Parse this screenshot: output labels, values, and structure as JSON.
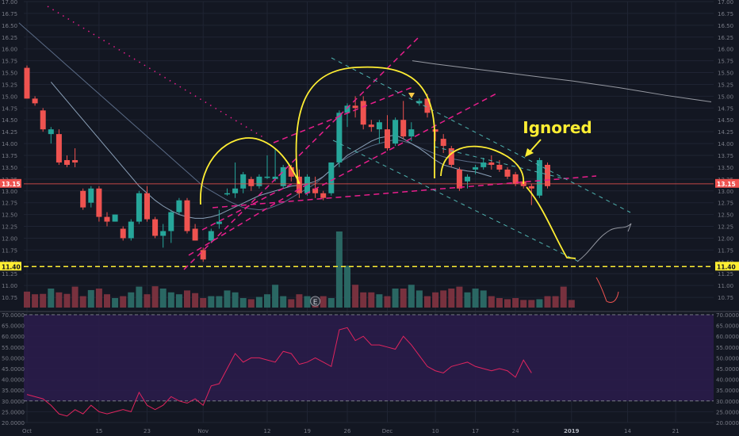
{
  "chart_data": {
    "type": "candlestick",
    "annotation_text": "Ignored",
    "price_axis": {
      "labels": [
        "17.00",
        "16.75",
        "16.50",
        "16.25",
        "16.00",
        "15.75",
        "15.50",
        "15.25",
        "15.00",
        "14.75",
        "14.50",
        "14.25",
        "14.00",
        "13.75",
        "13.50",
        "13.25",
        "13.00",
        "12.75",
        "12.50",
        "12.25",
        "12.00",
        "11.75",
        "11.50",
        "11.25",
        "11.00",
        "10.75"
      ],
      "values": [
        17.0,
        16.75,
        16.5,
        16.25,
        16.0,
        15.75,
        15.5,
        15.25,
        15.0,
        14.75,
        14.5,
        14.25,
        14.0,
        13.75,
        13.5,
        13.25,
        13.0,
        12.75,
        12.5,
        12.25,
        12.0,
        11.75,
        11.5,
        11.25,
        11.0,
        10.75
      ],
      "range": [
        10.5,
        17.0
      ],
      "current_price": 13.15,
      "current_price_label": "13.15",
      "horizontal_line": 11.4,
      "horizontal_line_label": "11.40"
    },
    "rsi_axis": {
      "labels": [
        "70.0000",
        "65.0000",
        "60.0000",
        "55.0000",
        "50.0000",
        "45.0000",
        "40.0000",
        "35.0000",
        "30.0000",
        "25.0000",
        "20.0000"
      ],
      "values": [
        70,
        65,
        60,
        55,
        50,
        45,
        40,
        35,
        30,
        25,
        20
      ],
      "range": [
        20,
        70
      ],
      "upper_band": 70,
      "lower_band": 30
    },
    "x_axis": {
      "labels": [
        "Oct",
        "15",
        "23",
        "Nov",
        "12",
        "19",
        "26",
        "Dec",
        "10",
        "17",
        "24",
        "2019",
        "14",
        "21"
      ],
      "positions": [
        0,
        9,
        15,
        22,
        30,
        35,
        40,
        45,
        51,
        56,
        61,
        68,
        75,
        81
      ]
    },
    "earnings_marker": "E",
    "candles": [
      {
        "o": 15.6,
        "h": 15.65,
        "l": 14.95,
        "c": 14.95
      },
      {
        "o": 14.95,
        "h": 15.0,
        "l": 14.8,
        "c": 14.85
      },
      {
        "o": 14.7,
        "h": 14.75,
        "l": 14.25,
        "c": 14.3
      },
      {
        "o": 14.2,
        "h": 14.35,
        "l": 14.0,
        "c": 14.3
      },
      {
        "o": 14.2,
        "h": 14.3,
        "l": 13.55,
        "c": 13.6
      },
      {
        "o": 13.65,
        "h": 13.75,
        "l": 13.5,
        "c": 13.55
      },
      {
        "o": 13.65,
        "h": 13.9,
        "l": 13.5,
        "c": 13.6
      },
      {
        "o": 13.0,
        "h": 13.05,
        "l": 12.6,
        "c": 12.65
      },
      {
        "o": 12.75,
        "h": 13.1,
        "l": 12.65,
        "c": 13.05
      },
      {
        "o": 13.05,
        "h": 13.1,
        "l": 12.35,
        "c": 12.45
      },
      {
        "o": 12.45,
        "h": 12.55,
        "l": 12.25,
        "c": 12.35
      },
      {
        "o": 12.35,
        "h": 12.5,
        "l": 12.35,
        "c": 12.5
      },
      {
        "o": 12.2,
        "h": 12.25,
        "l": 11.95,
        "c": 12.0
      },
      {
        "o": 12.0,
        "h": 12.4,
        "l": 11.95,
        "c": 12.35
      },
      {
        "o": 12.35,
        "h": 13.0,
        "l": 12.3,
        "c": 12.95
      },
      {
        "o": 12.95,
        "h": 13.1,
        "l": 12.35,
        "c": 12.4
      },
      {
        "o": 12.4,
        "h": 12.45,
        "l": 12.0,
        "c": 12.05
      },
      {
        "o": 12.05,
        "h": 12.3,
        "l": 11.8,
        "c": 12.15
      },
      {
        "o": 12.15,
        "h": 12.6,
        "l": 11.9,
        "c": 12.55
      },
      {
        "o": 12.55,
        "h": 12.85,
        "l": 12.5,
        "c": 12.8
      },
      {
        "o": 12.8,
        "h": 12.85,
        "l": 12.1,
        "c": 12.15
      },
      {
        "o": 12.2,
        "h": 12.3,
        "l": 11.95,
        "c": 11.95
      },
      {
        "o": 11.75,
        "h": 11.8,
        "l": 11.5,
        "c": 11.55
      },
      {
        "o": 11.95,
        "h": 12.2,
        "l": 11.9,
        "c": 12.15
      },
      {
        "o": 12.3,
        "h": 12.6,
        "l": 12.2,
        "c": 12.35
      }
    ],
    "candles_2": [
      {
        "o": 12.95,
        "h": 13.05,
        "l": 12.9,
        "c": 12.95
      },
      {
        "o": 12.95,
        "h": 13.6,
        "l": 12.85,
        "c": 13.05
      },
      {
        "o": 13.05,
        "h": 13.4,
        "l": 12.95,
        "c": 13.35
      },
      {
        "o": 13.25,
        "h": 13.3,
        "l": 13.0,
        "c": 13.1
      },
      {
        "o": 13.1,
        "h": 13.35,
        "l": 13.05,
        "c": 13.3
      },
      {
        "o": 13.3,
        "h": 13.75,
        "l": 13.25,
        "c": 13.3
      },
      {
        "o": 13.25,
        "h": 13.9,
        "l": 13.2,
        "c": 13.3
      },
      {
        "o": 13.1,
        "h": 13.55,
        "l": 13.05,
        "c": 13.5
      },
      {
        "o": 13.5,
        "h": 13.55,
        "l": 13.2,
        "c": 13.3
      },
      {
        "o": 13.3,
        "h": 13.45,
        "l": 12.85,
        "c": 12.95
      },
      {
        "o": 12.95,
        "h": 13.35,
        "l": 12.9,
        "c": 13.3
      },
      {
        "o": 13.05,
        "h": 13.3,
        "l": 12.85,
        "c": 12.95
      },
      {
        "o": 12.95,
        "h": 13.0,
        "l": 12.8,
        "c": 12.85
      },
      {
        "o": 12.95,
        "h": 13.6,
        "l": 12.9,
        "c": 13.6
      },
      {
        "o": 13.6,
        "h": 14.7,
        "l": 13.5,
        "c": 14.65
      },
      {
        "o": 14.65,
        "h": 14.85,
        "l": 14.35,
        "c": 14.8
      },
      {
        "o": 14.8,
        "h": 15.0,
        "l": 14.55,
        "c": 14.75
      },
      {
        "o": 14.9,
        "h": 15.0,
        "l": 14.3,
        "c": 14.4
      },
      {
        "o": 14.4,
        "h": 14.5,
        "l": 14.25,
        "c": 14.35
      },
      {
        "o": 14.3,
        "h": 14.5,
        "l": 14.0,
        "c": 14.45
      },
      {
        "o": 14.3,
        "h": 14.6,
        "l": 13.85,
        "c": 13.9
      },
      {
        "o": 14.0,
        "h": 14.55,
        "l": 13.95,
        "c": 14.5
      },
      {
        "o": 14.5,
        "h": 14.9,
        "l": 14.1,
        "c": 14.15
      },
      {
        "o": 14.15,
        "h": 14.45,
        "l": 14.05,
        "c": 14.3
      }
    ],
    "candles_3": [
      {
        "o": 14.85,
        "h": 14.95,
        "l": 14.8,
        "c": 14.9
      },
      {
        "o": 14.95,
        "h": 15.05,
        "l": 14.55,
        "c": 14.65
      },
      {
        "o": 14.3,
        "h": 14.3,
        "l": 14.05,
        "c": 14.25
      },
      {
        "o": 14.1,
        "h": 14.2,
        "l": 13.8,
        "c": 13.95
      },
      {
        "o": 13.9,
        "h": 13.95,
        "l": 13.5,
        "c": 13.55
      },
      {
        "o": 13.45,
        "h": 13.5,
        "l": 13.0,
        "c": 13.05
      },
      {
        "o": 13.2,
        "h": 13.35,
        "l": 13.05,
        "c": 13.3
      },
      {
        "o": 13.45,
        "h": 13.55,
        "l": 13.35,
        "c": 13.5
      },
      {
        "o": 13.5,
        "h": 13.7,
        "l": 13.45,
        "c": 13.6
      },
      {
        "o": 13.6,
        "h": 13.75,
        "l": 13.45,
        "c": 13.55
      },
      {
        "o": 13.55,
        "h": 13.65,
        "l": 13.4,
        "c": 13.45
      },
      {
        "o": 13.45,
        "h": 13.5,
        "l": 13.25,
        "c": 13.3
      },
      {
        "o": 13.35,
        "h": 13.4,
        "l": 13.1,
        "c": 13.15
      },
      {
        "o": 13.2,
        "h": 13.25,
        "l": 13.05,
        "c": 13.1
      },
      {
        "o": 13.1,
        "h": 13.15,
        "l": 12.7,
        "c": 13.05
      },
      {
        "o": 12.9,
        "h": 13.7,
        "l": 12.85,
        "c": 13.65
      },
      {
        "o": 13.55,
        "h": 13.6,
        "l": 13.05,
        "c": 13.1
      }
    ],
    "volume": [
      0.42,
      0.35,
      0.36,
      0.5,
      0.4,
      0.36,
      0.55,
      0.3,
      0.46,
      0.5,
      0.35,
      0.25,
      0.3,
      0.4,
      0.55,
      0.35,
      0.56,
      0.5,
      0.4,
      0.35,
      0.45,
      0.38,
      0.25,
      0.3,
      0.3,
      0.45,
      0.4,
      0.25,
      0.22,
      0.28,
      0.35,
      0.6,
      0.3,
      0.22,
      0.35,
      0.3,
      0.25,
      0.3,
      0.25,
      2.0,
      1.1,
      0.6,
      0.4,
      0.4,
      0.35,
      0.3,
      0.5,
      0.5,
      0.6,
      0.45,
      0.3,
      0.4,
      0.45,
      0.5,
      0.55,
      0.4,
      0.5,
      0.45,
      0.3,
      0.25,
      0.22,
      0.25,
      0.2,
      0.2,
      0.22,
      0.3,
      0.3,
      0.55,
      0.2
    ],
    "rsi": [
      33,
      32,
      31,
      28,
      24,
      23,
      26,
      24,
      28,
      25,
      24,
      25,
      26,
      25,
      34,
      28,
      26,
      28,
      32,
      30,
      29,
      31,
      28,
      37,
      38,
      45,
      52,
      48,
      50,
      50,
      49,
      48,
      53,
      52,
      47,
      48,
      50,
      48,
      46,
      63,
      64,
      58,
      60,
      56,
      56,
      55,
      54,
      60,
      56,
      51,
      46,
      44,
      43,
      46,
      47,
      48,
      46,
      45,
      44,
      45,
      44,
      41,
      49,
      43
    ],
    "ma_slow": [
      16.55,
      16.4,
      16.25,
      16.1,
      15.95,
      15.8,
      15.65,
      15.5,
      15.35,
      15.2,
      15.05,
      14.9,
      14.75,
      14.6,
      14.45,
      14.3,
      14.15,
      14.0,
      13.85,
      13.7,
      13.55,
      13.4,
      13.25,
      13.1,
      13.0,
      12.9,
      12.8,
      12.72,
      12.65,
      12.62,
      12.6,
      12.62,
      12.68,
      12.75,
      12.85,
      12.95,
      13.05,
      13.15,
      13.3,
      13.45,
      13.6,
      13.7,
      13.8,
      13.88,
      13.95,
      14.0,
      14.05,
      14.08,
      14.05,
      14.0,
      13.92,
      13.85,
      13.78,
      13.72,
      13.68,
      13.65,
      13.62,
      13.6,
      13.58,
      13.55
    ],
    "ma_fast": [
      15.3,
      15.1,
      14.9,
      14.7,
      14.5,
      14.3,
      14.1,
      13.9,
      13.7,
      13.5,
      13.3,
      13.1,
      12.95,
      12.8,
      12.68,
      12.58,
      12.5,
      12.45,
      12.42,
      12.42,
      12.45,
      12.5,
      12.58,
      12.66,
      12.74,
      12.82,
      12.9,
      12.95,
      13.0,
      13.05,
      13.1,
      13.12,
      13.15,
      13.2,
      13.3,
      13.45,
      13.6,
      13.75,
      13.85,
      13.95,
      14.05,
      14.12,
      14.15,
      14.18,
      14.1,
      14.0,
      13.9,
      13.78,
      13.65,
      13.55,
      13.5,
      13.45,
      13.42,
      13.4,
      13.35,
      13.3
    ],
    "ma_long": [
      15.75,
      15.68,
      15.62,
      15.56,
      15.5,
      15.44,
      15.38,
      15.32,
      15.25,
      15.18,
      15.1,
      15.02,
      14.95,
      14.88
    ],
    "hand_drawn_projection": [
      11.55,
      11.6,
      11.75,
      11.9,
      12.05,
      12.2,
      12.35,
      12.32,
      12.4
    ]
  }
}
